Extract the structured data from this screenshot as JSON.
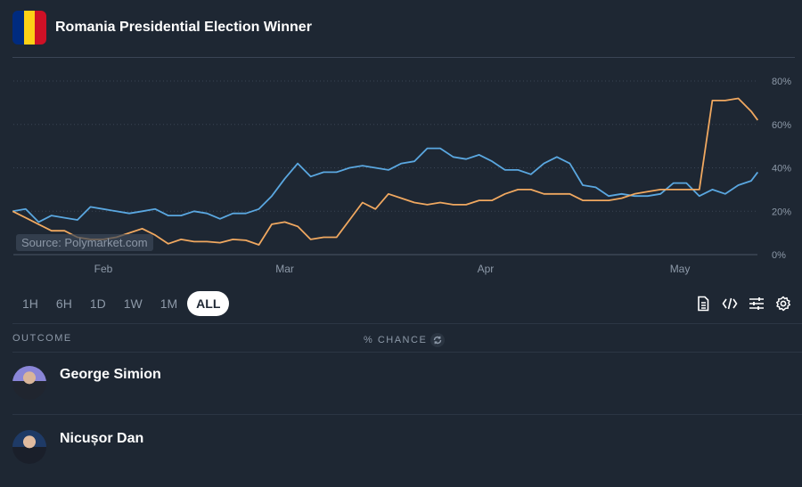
{
  "header": {
    "title": "Romania Presidential Election Winner",
    "flag_colors": [
      "#002B7F",
      "#FCD116",
      "#CE1126"
    ]
  },
  "chart_data": {
    "type": "line",
    "title": "",
    "source": "Source: Polymarket.com",
    "x_ticks": [
      "Feb",
      "Mar",
      "Apr",
      "May"
    ],
    "y_ticks": [
      "0%",
      "20%",
      "40%",
      "60%",
      "80%"
    ],
    "ylim": [
      0,
      80
    ],
    "grid": true,
    "x": [
      "2025-01-18",
      "2025-01-20",
      "2025-01-22",
      "2025-01-24",
      "2025-01-26",
      "2025-01-28",
      "2025-01-30",
      "2025-02-01",
      "2025-02-03",
      "2025-02-05",
      "2025-02-07",
      "2025-02-09",
      "2025-02-11",
      "2025-02-13",
      "2025-02-15",
      "2025-02-17",
      "2025-02-19",
      "2025-02-21",
      "2025-02-23",
      "2025-02-25",
      "2025-02-27",
      "2025-03-01",
      "2025-03-03",
      "2025-03-05",
      "2025-03-07",
      "2025-03-09",
      "2025-03-11",
      "2025-03-13",
      "2025-03-15",
      "2025-03-17",
      "2025-03-19",
      "2025-03-21",
      "2025-03-23",
      "2025-03-25",
      "2025-03-27",
      "2025-03-29",
      "2025-03-31",
      "2025-04-02",
      "2025-04-04",
      "2025-04-06",
      "2025-04-08",
      "2025-04-10",
      "2025-04-12",
      "2025-04-14",
      "2025-04-16",
      "2025-04-18",
      "2025-04-20",
      "2025-04-22",
      "2025-04-24",
      "2025-04-26",
      "2025-04-28",
      "2025-04-30",
      "2025-05-02",
      "2025-05-04",
      "2025-05-06",
      "2025-05-08",
      "2025-05-10",
      "2025-05-12",
      "2025-05-13"
    ],
    "series": [
      {
        "color": "#5aa7e0",
        "values": [
          20,
          21,
          15,
          18,
          17,
          16,
          22,
          21,
          20,
          19,
          20,
          21,
          18,
          18,
          20,
          19,
          16.5,
          19,
          19,
          21,
          27,
          35,
          42,
          36,
          38,
          38,
          40,
          41,
          40,
          39,
          42,
          43,
          49,
          49,
          45,
          44,
          46,
          43,
          39,
          39,
          37,
          42,
          45,
          42,
          32,
          31,
          27,
          28,
          27,
          27,
          28,
          33,
          33,
          27,
          30,
          28,
          32,
          34,
          38
        ]
      },
      {
        "color": "#f0a860",
        "values": [
          20,
          17,
          14,
          11,
          11,
          8,
          7,
          7,
          8,
          10,
          12,
          9,
          5,
          7,
          6,
          6,
          5.5,
          7,
          6.6,
          4.5,
          14,
          15,
          13,
          7,
          8,
          8,
          16,
          24,
          21,
          28,
          26,
          24,
          23,
          24,
          23,
          23,
          25,
          25,
          28,
          30,
          30,
          28,
          28,
          28,
          25,
          25,
          25,
          26,
          28,
          29,
          30,
          30,
          30,
          30,
          71,
          71,
          72,
          66,
          62
        ]
      }
    ]
  },
  "ranges": {
    "options": [
      "1H",
      "6H",
      "1D",
      "1W",
      "1M",
      "ALL"
    ],
    "selected": "ALL"
  },
  "tools": [
    "document-icon",
    "code-icon",
    "sliders-icon",
    "gear-icon"
  ],
  "table": {
    "col_outcome": "OUTCOME",
    "col_chance": "% CHANCE",
    "rows": [
      {
        "name": "George Simion"
      },
      {
        "name": "Nicușor Dan"
      }
    ]
  }
}
